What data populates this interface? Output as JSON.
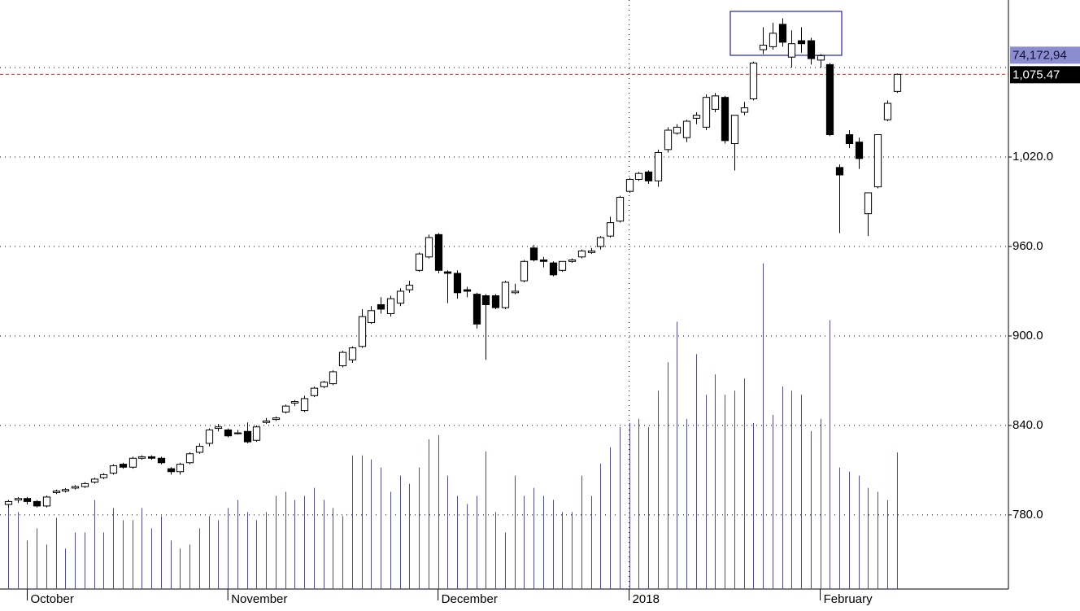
{
  "chart_data": {
    "type": "candlestick",
    "open": [
      787,
      790,
      791,
      789,
      786,
      795,
      796,
      798,
      799,
      802,
      805,
      808,
      814,
      812,
      818,
      819,
      818,
      811,
      809,
      815,
      822,
      828,
      838,
      837,
      835,
      836,
      830,
      842,
      844,
      849,
      855,
      850,
      860,
      866,
      868,
      880,
      884,
      893,
      909,
      921,
      915,
      922,
      931,
      944,
      953,
      968,
      943,
      942,
      931,
      928,
      927,
      927,
      919,
      929,
      937,
      959,
      951,
      949,
      944,
      950,
      953,
      956,
      960,
      967,
      977,
      997,
      1005,
      1010,
      1004,
      1025,
      1036,
      1033,
      1046,
      1040,
      1052,
      1060,
      1029,
      1050,
      1059,
      1092,
      1094,
      1109,
      1087,
      1098,
      1098,
      1085,
      1082,
      1013,
      1035,
      1030,
      982,
      1000,
      1045,
      1064
    ],
    "high": [
      790,
      792,
      792,
      790,
      793,
      797,
      798,
      800,
      802,
      805,
      808,
      814,
      815,
      819,
      820,
      820,
      819,
      812,
      815,
      822,
      828,
      838,
      841,
      838,
      837,
      842,
      840,
      845,
      846,
      854,
      857,
      860,
      866,
      870,
      877,
      890,
      893,
      918,
      920,
      926,
      927,
      932,
      937,
      956,
      968,
      969,
      944,
      944,
      933,
      929,
      928,
      928,
      937,
      935,
      951,
      961,
      953,
      950,
      950,
      952,
      958,
      959,
      967,
      980,
      994,
      1006,
      1010,
      1011,
      1025,
      1040,
      1042,
      1045,
      1050,
      1062,
      1063,
      1061,
      1047,
      1057,
      1084,
      1107,
      1110,
      1113,
      1105,
      1107,
      1100,
      1089,
      1083,
      1015,
      1038,
      1033,
      996,
      1035,
      1058,
      1076
    ],
    "low": [
      785,
      788,
      787,
      785,
      785,
      794,
      795,
      797,
      798,
      801,
      804,
      807,
      811,
      811,
      817,
      817,
      814,
      807,
      807,
      814,
      821,
      826,
      836,
      832,
      834,
      828,
      829,
      841,
      843,
      848,
      853,
      849,
      859,
      865,
      867,
      879,
      882,
      892,
      908,
      915,
      913,
      920,
      929,
      943,
      952,
      942,
      922,
      925,
      926,
      905,
      884,
      918,
      918,
      928,
      936,
      950,
      946,
      940,
      943,
      949,
      952,
      955,
      958,
      966,
      976,
      996,
      1004,
      1002,
      1000,
      1023,
      1035,
      1030,
      1042,
      1038,
      1050,
      1029,
      1011,
      1048,
      1058,
      1089,
      1092,
      1094,
      1080,
      1090,
      1082,
      1080,
      1034,
      969,
      1026,
      1012,
      967,
      999,
      1044,
      1063
    ],
    "close": [
      789,
      791,
      789,
      786,
      792,
      796,
      797,
      799,
      801,
      804,
      807,
      813,
      812,
      818,
      819,
      818,
      815,
      809,
      814,
      821,
      826,
      837,
      839,
      833,
      835,
      829,
      839,
      843,
      845,
      853,
      856,
      858,
      865,
      869,
      876,
      889,
      892,
      913,
      917,
      918,
      925,
      930,
      934,
      955,
      966,
      944,
      942,
      929,
      930,
      908,
      921,
      919,
      936,
      930,
      950,
      951,
      950,
      941,
      950,
      951,
      957,
      957,
      966,
      976,
      993,
      1005,
      1009,
      1004,
      1023,
      1038,
      1040,
      1044,
      1048,
      1060,
      1061,
      1031,
      1048,
      1053,
      1083,
      1095,
      1103,
      1097,
      1096,
      1096,
      1086,
      1088,
      1035,
      1008,
      1029,
      1019,
      996,
      1035,
      1056,
      1075.47
    ],
    "volume": [
      48400,
      41800,
      26400,
      33000,
      24200,
      38720,
      22000,
      30800,
      30800,
      48400,
      30800,
      44000,
      37400,
      37400,
      44000,
      33000,
      39600,
      26400,
      22000,
      24200,
      33000,
      39600,
      37400,
      44000,
      48400,
      41800,
      37400,
      41800,
      50600,
      52800,
      48400,
      50600,
      55000,
      48400,
      44000,
      39600,
      72600,
      72600,
      70400,
      66000,
      52800,
      61600,
      57200,
      66000,
      81400,
      83600,
      61600,
      50600,
      46200,
      50600,
      74800,
      41800,
      30800,
      61600,
      50600,
      55000,
      50600,
      48400,
      41800,
      41800,
      61600,
      50600,
      68200,
      77000,
      88000,
      90200,
      92400,
      88000,
      107800,
      123200,
      145200,
      92400,
      127600,
      105600,
      116600,
      105600,
      107800,
      114400,
      90200,
      176880,
      94600,
      110000,
      107800,
      105600,
      85800,
      92400,
      146080,
      66000,
      63800,
      61600,
      55000,
      52800,
      48400,
      74172.94
    ],
    "up_color": "#ffffff",
    "down_color": "#000000",
    "volume_color": "#4a4ab4",
    "last_line_color": "#ff2020",
    "xlim": [
      -0.85,
      104.7
    ],
    "xticks": [
      {
        "value": 2,
        "label": "October"
      },
      {
        "value": 23,
        "label": "November"
      },
      {
        "value": 45,
        "label": "December"
      },
      {
        "value": 65,
        "label": "2018",
        "major": true
      },
      {
        "value": 85,
        "label": "February"
      }
    ],
    "ylim": [
      730.3,
      1125.3
    ],
    "yticks": [
      {
        "value": 780,
        "label": "780.0"
      },
      {
        "value": 840,
        "label": "840.0"
      },
      {
        "value": 900,
        "label": "900.0"
      },
      {
        "value": 960,
        "label": "960.0"
      },
      {
        "value": 1020,
        "label": "1,020.0"
      }
    ],
    "y2lim": [
      0,
      320000
    ],
    "grid": true,
    "last_close_label": "1,075.47",
    "last_volume_label": "74,172,94"
  }
}
